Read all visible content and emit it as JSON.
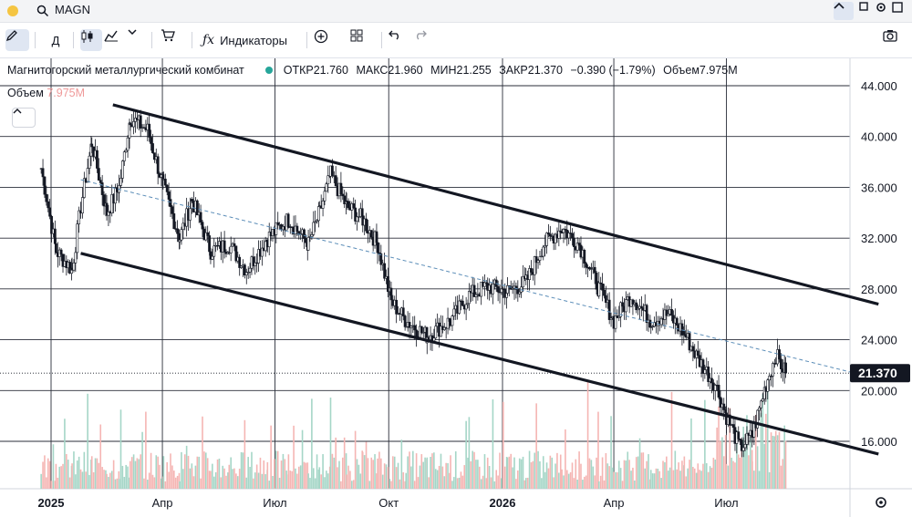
{
  "window": {
    "search_query": "MAGN"
  },
  "toolbar": {
    "interval_label": "Д",
    "indicators_label": "Индикаторы"
  },
  "legend": {
    "company": "Магнитогорский металлургический комбинат",
    "open": "ОТКР21.760",
    "high": "МАКС21.960",
    "low": "МИН21.255",
    "close": "ЗАКР21.370",
    "change": "−0.390 (−1.79%)",
    "volume": "Объем7.975M"
  },
  "volume_label": {
    "name": "Объем",
    "value": "7.975M"
  },
  "colors": {
    "up": "#26a69a",
    "down": "#ef5350",
    "accent": "#2962ff",
    "grid": "#131722",
    "price_tag": "#131722"
  },
  "icons": [
    "pencil-icon",
    "candles-icon",
    "line-chart-icon",
    "chevron-down-icon",
    "cart-icon",
    "fx-icon",
    "plus-circle-icon",
    "grid-icon",
    "undo-icon",
    "redo-icon",
    "camera-icon",
    "settings-icon",
    "search-icon",
    "chevron-up-icon",
    "square-icon",
    "gear-icon"
  ],
  "chart_data": {
    "type": "candlestick",
    "ylim": [
      12,
      46
    ],
    "y_ticks": [
      "44.000",
      "40.000",
      "36.000",
      "32.000",
      "28.000",
      "24.000",
      "20.000",
      "16.000"
    ],
    "y_tick_values": [
      44,
      40,
      36,
      32,
      28,
      24,
      20,
      16
    ],
    "x_ticks": [
      "2025",
      "Апр",
      "Июл",
      "Окт",
      "2026",
      "Апр",
      "Июл"
    ],
    "x_tick_dates": [
      "2025-01-01",
      "2025-04-01",
      "2025-07-01",
      "2025-10-01",
      "2026-01-01",
      "2026-04-01",
      "2026-07-01"
    ],
    "last_price": "21.370",
    "last_price_value": 21.37,
    "price_path": [
      [
        "2024-12-24",
        37.5
      ],
      [
        "2025-01-05",
        31.0
      ],
      [
        "2025-01-18",
        29.5
      ],
      [
        "2025-01-25",
        34.5
      ],
      [
        "2025-02-03",
        39.5
      ],
      [
        "2025-02-15",
        34.0
      ],
      [
        "2025-02-25",
        36.0
      ],
      [
        "2025-03-06",
        41.5
      ],
      [
        "2025-03-20",
        40.5
      ],
      [
        "2025-04-02",
        36.0
      ],
      [
        "2025-04-15",
        32.0
      ],
      [
        "2025-04-25",
        35.0
      ],
      [
        "2025-05-10",
        31.0
      ],
      [
        "2025-05-25",
        31.5
      ],
      [
        "2025-06-08",
        29.5
      ],
      [
        "2025-06-25",
        32.0
      ],
      [
        "2025-07-12",
        33.5
      ],
      [
        "2025-07-28",
        31.5
      ],
      [
        "2025-08-06",
        34.0
      ],
      [
        "2025-08-15",
        37.0
      ],
      [
        "2025-08-28",
        34.5
      ],
      [
        "2025-09-10",
        33.5
      ],
      [
        "2025-09-22",
        31.5
      ],
      [
        "2025-10-03",
        27.0
      ],
      [
        "2025-10-15",
        25.5
      ],
      [
        "2025-11-01",
        24.3
      ],
      [
        "2025-11-20",
        25.5
      ],
      [
        "2025-12-05",
        27.5
      ],
      [
        "2025-12-20",
        28.2
      ],
      [
        "2026-01-05",
        27.8
      ],
      [
        "2026-01-20",
        28.5
      ],
      [
        "2026-02-03",
        31.5
      ],
      [
        "2026-02-18",
        32.8
      ],
      [
        "2026-03-04",
        31.5
      ],
      [
        "2026-03-20",
        28.0
      ],
      [
        "2026-04-01",
        25.5
      ],
      [
        "2026-04-15",
        27.5
      ],
      [
        "2026-05-01",
        25.5
      ],
      [
        "2026-05-15",
        26.0
      ],
      [
        "2026-05-28",
        24.5
      ],
      [
        "2026-06-08",
        22.5
      ],
      [
        "2026-06-22",
        20.5
      ],
      [
        "2026-07-01",
        18.0
      ],
      [
        "2026-07-12",
        15.5
      ],
      [
        "2026-07-22",
        16.5
      ],
      [
        "2026-08-02",
        20.5
      ],
      [
        "2026-08-10",
        22.8
      ],
      [
        "2026-08-18",
        21.37
      ]
    ],
    "channel": {
      "upper": [
        [
          "2025-02-20",
          42.5
        ],
        [
          "2026-11-01",
          26.8
        ]
      ],
      "lower": [
        [
          "2025-01-25",
          30.8
        ],
        [
          "2026-11-01",
          15.0
        ]
      ],
      "mid": [
        [
          "2025-01-25",
          36.6
        ],
        [
          "2026-11-01",
          20.9
        ]
      ]
    }
  }
}
